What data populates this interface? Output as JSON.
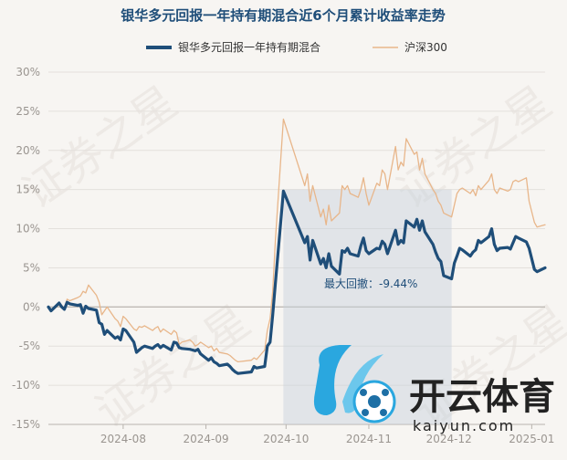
{
  "chart_data": {
    "type": "line",
    "title": "银华多元回报一年持有期混合近6个月累计收益率走势",
    "xlabel": "",
    "ylabel": "",
    "ylim": [
      -15,
      30
    ],
    "yticks": [
      "30%",
      "25%",
      "20%",
      "15%",
      "10%",
      "5%",
      "0%",
      "-5%",
      "-10%",
      "-15%"
    ],
    "ytick_values": [
      30,
      25,
      20,
      15,
      10,
      5,
      0,
      -5,
      -10,
      -15
    ],
    "x_dates": [
      "2024-07-04",
      "2024-07-05",
      "2024-07-08",
      "2024-07-09",
      "2024-07-10",
      "2024-07-11",
      "2024-07-12",
      "2024-07-15",
      "2024-07-16",
      "2024-07-17",
      "2024-07-18",
      "2024-07-19",
      "2024-07-22",
      "2024-07-23",
      "2024-07-24",
      "2024-07-25",
      "2024-07-26",
      "2024-07-29",
      "2024-07-30",
      "2024-07-31",
      "2024-08-01",
      "2024-08-02",
      "2024-08-05",
      "2024-08-06",
      "2024-08-07",
      "2024-08-08",
      "2024-08-09",
      "2024-08-12",
      "2024-08-13",
      "2024-08-14",
      "2024-08-15",
      "2024-08-16",
      "2024-08-19",
      "2024-08-20",
      "2024-08-21",
      "2024-08-22",
      "2024-08-23",
      "2024-08-26",
      "2024-08-27",
      "2024-08-28",
      "2024-08-29",
      "2024-08-30",
      "2024-09-02",
      "2024-09-03",
      "2024-09-04",
      "2024-09-05",
      "2024-09-06",
      "2024-09-09",
      "2024-09-10",
      "2024-09-11",
      "2024-09-12",
      "2024-09-13",
      "2024-09-18",
      "2024-09-19",
      "2024-09-20",
      "2024-09-23",
      "2024-09-24",
      "2024-09-25",
      "2024-09-26",
      "2024-09-27",
      "2024-09-30",
      "2024-10-08",
      "2024-10-09",
      "2024-10-10",
      "2024-10-11",
      "2024-10-14",
      "2024-10-15",
      "2024-10-16",
      "2024-10-17",
      "2024-10-18",
      "2024-10-21",
      "2024-10-22",
      "2024-10-23",
      "2024-10-24",
      "2024-10-25",
      "2024-10-28",
      "2024-10-29",
      "2024-10-30",
      "2024-10-31",
      "2024-11-01",
      "2024-11-04",
      "2024-11-05",
      "2024-11-06",
      "2024-11-07",
      "2024-11-08",
      "2024-11-11",
      "2024-11-12",
      "2024-11-13",
      "2024-11-14",
      "2024-11-15",
      "2024-11-18",
      "2024-11-19",
      "2024-11-20",
      "2024-11-21",
      "2024-11-22",
      "2024-11-25",
      "2024-11-26",
      "2024-11-27",
      "2024-11-28",
      "2024-11-29",
      "2024-12-02",
      "2024-12-03",
      "2024-12-04",
      "2024-12-05",
      "2024-12-06",
      "2024-12-09",
      "2024-12-10",
      "2024-12-11",
      "2024-12-12",
      "2024-12-13",
      "2024-12-16",
      "2024-12-17",
      "2024-12-18",
      "2024-12-19",
      "2024-12-20",
      "2024-12-23",
      "2024-12-24",
      "2024-12-25",
      "2024-12-26",
      "2024-12-27",
      "2024-12-30",
      "2024-12-31",
      "2025-01-02",
      "2025-01-03",
      "2025-01-06"
    ],
    "xticks": [
      {
        "date": "2024-08-01",
        "label": "2024-08"
      },
      {
        "date": "2024-09-01",
        "label": "2024-09"
      },
      {
        "date": "2024-10-01",
        "label": "2024-10"
      },
      {
        "date": "2024-11-01",
        "label": "2024-11"
      },
      {
        "date": "2024-12-01",
        "label": "2024-12"
      },
      {
        "date": "2025-01-01",
        "label": "2025-01"
      }
    ],
    "series": [
      {
        "name": "银华多元回报一年持有期混合",
        "color": "#1f4e79",
        "values": [
          0,
          -0.5,
          0.5,
          0,
          -0.3,
          0.6,
          0.4,
          0.2,
          0.3,
          -0.8,
          0.1,
          -0.2,
          -0.4,
          -2.0,
          -2.2,
          -3.5,
          -3.0,
          -4.0,
          -3.8,
          -4.2,
          -2.8,
          -3.0,
          -4.5,
          -5.8,
          -5.5,
          -5.2,
          -5.0,
          -5.3,
          -5.0,
          -4.8,
          -5.2,
          -4.9,
          -5.5,
          -4.5,
          -4.6,
          -5.2,
          -5.3,
          -5.4,
          -5.5,
          -5.6,
          -5.4,
          -6.0,
          -6.8,
          -6.5,
          -7.0,
          -7.2,
          -7.5,
          -7.3,
          -7.6,
          -8.0,
          -8.3,
          -8.5,
          -8.3,
          -7.6,
          -7.8,
          -7.6,
          -5.0,
          -4.5,
          -1.0,
          3.0,
          14.8,
          8.2,
          9.0,
          6.0,
          8.5,
          5.5,
          6.2,
          5.0,
          6.8,
          5.2,
          4.2,
          7.2,
          7.0,
          7.5,
          6.8,
          6.5,
          7.8,
          8.8,
          7.2,
          6.8,
          7.5,
          7.4,
          8.4,
          8.0,
          6.8,
          9.8,
          8.0,
          8.5,
          8.2,
          11.0,
          10.2,
          11.2,
          9.8,
          11.0,
          9.6,
          8.0,
          7.0,
          6.2,
          5.8,
          4.0,
          3.6,
          5.6,
          6.5,
          7.5,
          7.3,
          6.5,
          7.0,
          7.3,
          8.5,
          8.2,
          9.0,
          10.0,
          8.0,
          7.2,
          7.5,
          7.6,
          7.4,
          8.2,
          9.0,
          8.8,
          8.3,
          7.5,
          4.8,
          4.5,
          5.0
        ],
        "name_label": "银华多元回报一年持有期混合"
      },
      {
        "name": "沪深300",
        "color": "#e8b68a",
        "values": [
          0,
          -0.6,
          0.3,
          0.2,
          -0.2,
          1.0,
          0.8,
          1.2,
          1.4,
          2.0,
          1.8,
          2.8,
          1.5,
          0.6,
          -1.0,
          -0.5,
          0.0,
          -1.5,
          -1.8,
          -2.5,
          -1.2,
          -1.5,
          -2.8,
          -3.0,
          -2.5,
          -2.6,
          -2.4,
          -3.0,
          -2.7,
          -2.5,
          -3.2,
          -2.8,
          -3.5,
          -3.0,
          -3.3,
          -4.8,
          -4.5,
          -4.2,
          -4.5,
          -5.0,
          -4.8,
          -4.5,
          -5.2,
          -5.0,
          -5.6,
          -5.3,
          -5.8,
          -6.0,
          -6.2,
          -6.5,
          -6.8,
          -7.0,
          -6.8,
          -6.5,
          -6.7,
          -5.5,
          -3.0,
          -1.5,
          2.0,
          8.5,
          24.0,
          15.5,
          17.0,
          13.5,
          15.5,
          11.5,
          12.5,
          10.5,
          13.0,
          11.0,
          12.0,
          15.5,
          15.0,
          15.5,
          14.5,
          14.0,
          15.0,
          16.5,
          14.5,
          13.0,
          15.8,
          15.5,
          17.5,
          17.0,
          15.0,
          20.5,
          17.5,
          18.5,
          18.0,
          21.5,
          19.5,
          19.8,
          17.5,
          19.0,
          17.0,
          15.0,
          14.5,
          13.5,
          13.0,
          12.0,
          11.5,
          13.0,
          14.5,
          15.0,
          15.2,
          14.5,
          15.0,
          14.2,
          15.5,
          15.0,
          16.2,
          17.0,
          15.0,
          14.5,
          15.2,
          14.8,
          15.0,
          16.0,
          16.2,
          16.0,
          16.5,
          13.5,
          10.8,
          10.2,
          10.5
        ],
        "name_label": "沪深300"
      }
    ],
    "annotation": {
      "text": "最大回撤：-9.44%",
      "range_start": "2024-09-30",
      "range_end": "2024-12-02"
    },
    "legend": {
      "position": "top-center"
    },
    "grid": true
  },
  "watermark": {
    "brand_text": "开云体育",
    "brand_url": "kaiyun.com",
    "diagonal_text": "证券之星"
  }
}
